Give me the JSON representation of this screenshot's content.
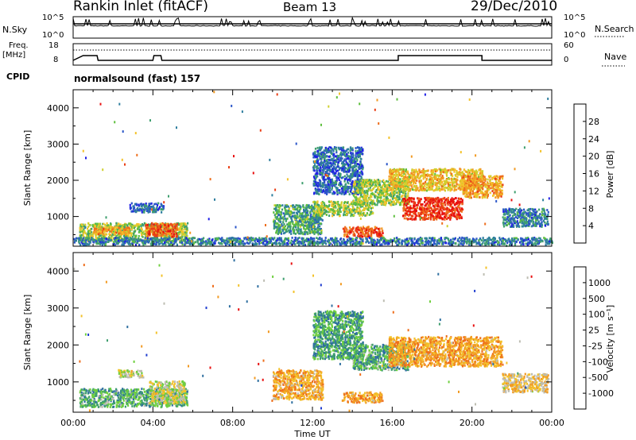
{
  "header": {
    "station": "Rankin Inlet (fitACF)",
    "beam": "Beam 13",
    "date": "29/Dec/2010"
  },
  "noise_panel": {
    "left_label": "N.Sky",
    "right_label": "N.Search",
    "left_ticks": [
      "10^5",
      "10^0"
    ],
    "right_ticks": [
      "10^5",
      "10^0"
    ]
  },
  "freq_panel": {
    "left_label_1": "Freq.",
    "left_label_2": "[MHz]",
    "left_ticks": [
      "18",
      "8"
    ],
    "right_ticks": [
      "60",
      "0"
    ],
    "right_label": "Nave",
    "cpid_label": "CPID",
    "cpid_text": "normalsound (fast) 157"
  },
  "chart_data": [
    {
      "type": "heatmap",
      "title": "Power",
      "ylabel": "Slant Range [km]",
      "xlabel": "",
      "x_ticks": [
        "00:00",
        "04:00",
        "08:00",
        "12:00",
        "16:00",
        "20:00",
        "00:00"
      ],
      "y_ticks": [
        1000,
        2000,
        3000,
        4000
      ],
      "ylim": [
        180,
        4500
      ],
      "xlim_hours": [
        0,
        24
      ],
      "colorbar": {
        "label": "Power [dB]",
        "ticks": [
          "4",
          "8",
          "12",
          "16",
          "20",
          "24",
          "28"
        ],
        "colors": [
          "#1f1fe6",
          "#2a55c8",
          "#2f7f9f",
          "#3f9f6f",
          "#5fbf3f",
          "#cfd02f",
          "#f3c22a",
          "#f29a22",
          "#ee6e1c",
          "#ea3f16",
          "#e81010"
        ]
      },
      "regions": [
        {
          "t": [
            0.3,
            5.7
          ],
          "r": [
            300,
            800
          ],
          "level": 0.45
        },
        {
          "t": [
            1.0,
            2.8
          ],
          "r": [
            480,
            700
          ],
          "level": 0.7
        },
        {
          "t": [
            3.6,
            5.2
          ],
          "r": [
            420,
            800
          ],
          "level": 0.85
        },
        {
          "t": [
            2.8,
            4.5
          ],
          "r": [
            1100,
            1350
          ],
          "level": 0.15
        },
        {
          "t": [
            10.0,
            12.5
          ],
          "r": [
            500,
            1300
          ],
          "level": 0.3
        },
        {
          "t": [
            12.0,
            15.0
          ],
          "r": [
            1000,
            1400
          ],
          "level": 0.45
        },
        {
          "t": [
            13.5,
            15.5
          ],
          "r": [
            420,
            700
          ],
          "level": 0.88
        },
        {
          "t": [
            12.0,
            14.5
          ],
          "r": [
            1600,
            2900
          ],
          "level": 0.15
        },
        {
          "t": [
            14.0,
            16.8
          ],
          "r": [
            1300,
            2000
          ],
          "level": 0.45
        },
        {
          "t": [
            15.8,
            20.5
          ],
          "r": [
            1700,
            2300
          ],
          "level": 0.6
        },
        {
          "t": [
            16.5,
            19.5
          ],
          "r": [
            900,
            1500
          ],
          "level": 0.93
        },
        {
          "t": [
            19.5,
            21.5
          ],
          "r": [
            1500,
            2100
          ],
          "level": 0.7
        },
        {
          "t": [
            21.5,
            23.8
          ],
          "r": [
            700,
            1200
          ],
          "level": 0.2
        },
        {
          "t": [
            0.0,
            24.0
          ],
          "r": [
            200,
            400
          ],
          "level": 0.2
        }
      ]
    },
    {
      "type": "heatmap",
      "title": "Velocity",
      "ylabel": "Slant Range [km]",
      "xlabel": "Time UT",
      "x_ticks": [
        "00:00",
        "04:00",
        "08:00",
        "12:00",
        "16:00",
        "20:00",
        "00:00"
      ],
      "y_ticks": [
        1000,
        2000,
        3000,
        4000
      ],
      "ylim": [
        180,
        4500
      ],
      "xlim_hours": [
        0,
        24
      ],
      "colorbar": {
        "label": "Velocity [m s^-1]",
        "ticks": [
          "1000",
          "500",
          "100",
          "25",
          "-25",
          "-100",
          "-500",
          "-1000"
        ],
        "colors": [
          "#1f3ccf",
          "#2f6fa0",
          "#3f9f6f",
          "#6fcf3f",
          "#bdbdb2",
          "#f3c22a",
          "#f29a22",
          "#ee6e1c",
          "#e81010"
        ]
      },
      "regions": [
        {
          "t": [
            0.3,
            5.7
          ],
          "r": [
            300,
            800
          ],
          "level": 0.3
        },
        {
          "t": [
            3.8,
            5.6
          ],
          "r": [
            400,
            1000
          ],
          "level": 0.5
        },
        {
          "t": [
            2.2,
            3.5
          ],
          "r": [
            1100,
            1300
          ],
          "level": 0.5
        },
        {
          "t": [
            10.0,
            12.5
          ],
          "r": [
            500,
            1300
          ],
          "level": 0.7
        },
        {
          "t": [
            13.5,
            15.5
          ],
          "r": [
            420,
            700
          ],
          "level": 0.72
        },
        {
          "t": [
            12.0,
            14.5
          ],
          "r": [
            1600,
            2900
          ],
          "level": 0.25
        },
        {
          "t": [
            14.0,
            16.8
          ],
          "r": [
            1300,
            2000
          ],
          "level": 0.3
        },
        {
          "t": [
            15.8,
            21.5
          ],
          "r": [
            1400,
            2200
          ],
          "level": 0.72
        },
        {
          "t": [
            21.5,
            23.8
          ],
          "r": [
            700,
            1200
          ],
          "level": 0.6
        }
      ]
    }
  ]
}
